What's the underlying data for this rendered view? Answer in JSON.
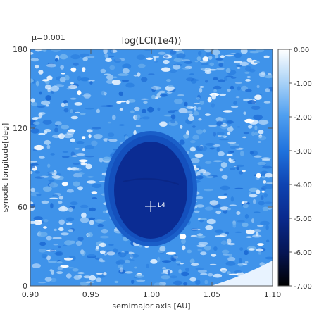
{
  "chart_data": {
    "type": "heatmap",
    "title": "log(LCI(1e4))",
    "annotation": "μ=0.001",
    "xlabel": "semimajor axis [AU]",
    "ylabel": "synodic longitude[deg]",
    "xlim": [
      0.9,
      1.1
    ],
    "ylim": [
      0,
      180
    ],
    "x_ticks": [
      "0.90",
      "0.95",
      "1.00",
      "1.05",
      "1.10"
    ],
    "y_ticks": [
      "0",
      "60",
      "120",
      "180"
    ],
    "colorbar": {
      "range": [
        -7.0,
        0.0
      ],
      "ticks": [
        "0.00",
        "-1.00",
        "-2.00",
        "-3.00",
        "-4.00",
        "-5.00",
        "-6.00",
        "-7.00"
      ]
    },
    "marker": {
      "label": "L4",
      "a": 1.0,
      "lon": 60
    },
    "regions": [
      {
        "name": "chaotic background",
        "value": -1.8
      },
      {
        "name": "halo",
        "value": -3.0
      },
      {
        "name": "stable tadpole core",
        "value": -4.3
      }
    ],
    "colors": {
      "white": "#ffffff",
      "light": "#63adf2",
      "mid": "#1f7fe3",
      "dark": "#0e3aa4",
      "darker": "#0a2183",
      "black": "#000000"
    }
  }
}
